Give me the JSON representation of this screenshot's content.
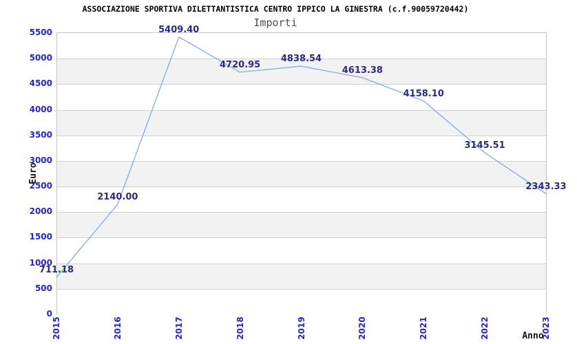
{
  "chart_data": {
    "type": "line",
    "title": "ASSOCIAZIONE SPORTIVA DILETTANTISTICA CENTRO IPPICO LA GINESTRA (c.f.90059720442)",
    "subtitle": "Importi",
    "xlabel": "Anno",
    "ylabel": "Euro",
    "categories": [
      "2015",
      "2016",
      "2017",
      "2018",
      "2019",
      "2020",
      "2021",
      "2022",
      "2023"
    ],
    "values": [
      711.18,
      2140.0,
      5409.4,
      4720.95,
      4838.54,
      4613.38,
      4158.1,
      3145.51,
      2343.33
    ],
    "value_labels": [
      "711.18",
      "2140.00",
      "5409.40",
      "4720.95",
      "4838.54",
      "4613.38",
      "4158.10",
      "3145.51",
      "2343.33"
    ],
    "y_tick_labels": [
      "0",
      "500",
      "1000",
      "1500",
      "2000",
      "2500",
      "3000",
      "3500",
      "4000",
      "4500",
      "5000",
      "5500"
    ],
    "ylim": [
      0,
      5500
    ],
    "y_tick_step": 500,
    "grid": "horizontal gridlines every 500 with alternating white/gray bands",
    "legend": "none",
    "colors": {
      "line": "#82abe0",
      "tick_label": "#2424cc",
      "data_label": "#2a2a80",
      "band_gray": "#f2f2f2",
      "band_white": "#ffffff",
      "gridline": "#cfcfcf",
      "plot_border": "#c4c4c4",
      "title": "#000000",
      "subtitle": "#4d4d4d"
    }
  }
}
